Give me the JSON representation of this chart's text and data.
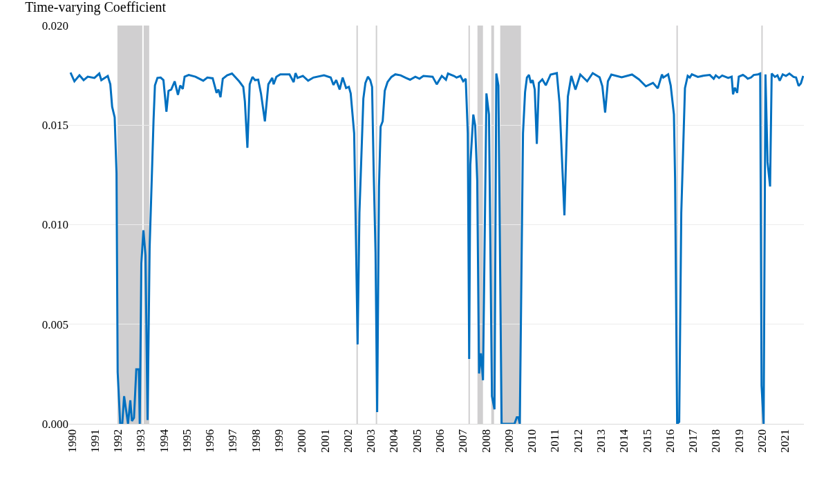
{
  "chart_data": {
    "type": "line",
    "title": "Time-varying Coefficient",
    "x": [
      1989.94,
      1990.11,
      1990.33,
      1990.51,
      1990.69,
      1990.98,
      1991.19,
      1991.28,
      1991.56,
      1991.67,
      1991.75,
      1991.86,
      1991.94,
      1991.99,
      1992.1,
      1992.19,
      1992.27,
      1992.44,
      1992.54,
      1992.61,
      1992.7,
      1992.8,
      1992.91,
      1992.95,
      1993.02,
      1993.11,
      1993.2,
      1993.29,
      1993.38,
      1993.48,
      1993.55,
      1993.61,
      1993.72,
      1993.86,
      1993.98,
      1994.11,
      1994.2,
      1994.32,
      1994.47,
      1994.61,
      1994.71,
      1994.82,
      1994.9,
      1995.08,
      1995.37,
      1995.71,
      1995.89,
      1996.12,
      1996.29,
      1996.37,
      1996.46,
      1996.56,
      1996.75,
      1996.96,
      1997.27,
      1997.45,
      1997.52,
      1997.63,
      1997.73,
      1997.85,
      1997.96,
      1998.1,
      1998.22,
      1998.39,
      1998.54,
      1998.71,
      1998.77,
      1998.89,
      1999.06,
      1999.46,
      1999.64,
      1999.72,
      1999.81,
      2000.04,
      2000.27,
      2000.5,
      2000.96,
      2001.25,
      2001.37,
      2001.49,
      2001.64,
      2001.77,
      2001.92,
      2002.04,
      2002.12,
      2002.27,
      2002.33,
      2002.42,
      2002.5,
      2002.67,
      2002.76,
      2002.87,
      2002.97,
      2003.05,
      2003.12,
      2003.2,
      2003.27,
      2003.35,
      2003.42,
      2003.51,
      2003.6,
      2003.72,
      2003.89,
      2004.06,
      2004.29,
      2004.52,
      2004.7,
      2004.93,
      2005.11,
      2005.28,
      2005.68,
      2005.86,
      2006.08,
      2006.26,
      2006.35,
      2006.61,
      2006.72,
      2006.89,
      2007.01,
      2007.12,
      2007.21,
      2007.27,
      2007.32,
      2007.45,
      2007.53,
      2007.62,
      2007.7,
      2007.78,
      2007.87,
      2008.02,
      2008.13,
      2008.26,
      2008.37,
      2008.45,
      2008.54,
      2008.68,
      2009.24,
      2009.34,
      2009.41,
      2009.47,
      2009.61,
      2009.7,
      2009.78,
      2009.87,
      2009.95,
      2010.03,
      2010.12,
      2010.21,
      2010.3,
      2010.45,
      2010.6,
      2010.81,
      2011.08,
      2011.2,
      2011.41,
      2011.56,
      2011.71,
      2011.89,
      2012.1,
      2012.4,
      2012.64,
      2012.94,
      2013.06,
      2013.18,
      2013.3,
      2013.45,
      2013.9,
      2014.35,
      2014.65,
      2014.95,
      2015.26,
      2015.47,
      2015.65,
      2015.71,
      2015.92,
      2016.03,
      2016.17,
      2016.22,
      2016.31,
      2016.4,
      2016.49,
      2016.65,
      2016.77,
      2016.86,
      2016.95,
      2017.21,
      2017.49,
      2017.73,
      2017.9,
      2017.99,
      2018.13,
      2018.27,
      2018.53,
      2018.68,
      2018.74,
      2018.82,
      2018.92,
      2018.99,
      2019.17,
      2019.29,
      2019.38,
      2019.52,
      2019.64,
      2019.83,
      2019.92,
      2019.98,
      2020.07,
      2020.15,
      2020.24,
      2020.35,
      2020.42,
      2020.56,
      2020.67,
      2020.77,
      2020.9,
      2021.04,
      2021.19,
      2021.37,
      2021.48,
      2021.59,
      2021.69,
      2021.79
    ],
    "series": [
      {
        "color": "#0070c0",
        "values": [
          0.01764,
          0.0172,
          0.0175,
          0.01726,
          0.01743,
          0.01737,
          0.01759,
          0.01726,
          0.01747,
          0.01705,
          0.01592,
          0.01539,
          0.01259,
          0.0026,
          0.0,
          0.0,
          0.00139,
          0.0,
          0.00118,
          0.00014,
          0.0003,
          0.00274,
          0.00274,
          0.0,
          0.00806,
          0.00972,
          0.00846,
          0.00019,
          0.00886,
          0.01259,
          0.01526,
          0.01699,
          0.01737,
          0.01739,
          0.01726,
          0.01567,
          0.01672,
          0.01679,
          0.0172,
          0.01652,
          0.01699,
          0.01682,
          0.01743,
          0.01752,
          0.01743,
          0.01723,
          0.01739,
          0.01735,
          0.01662,
          0.01679,
          0.0164,
          0.01733,
          0.0175,
          0.01759,
          0.0172,
          0.01692,
          0.01619,
          0.01386,
          0.01705,
          0.01742,
          0.01726,
          0.01728,
          0.01659,
          0.01519,
          0.01705,
          0.01737,
          0.01705,
          0.01743,
          0.01755,
          0.01755,
          0.01716,
          0.01761,
          0.01737,
          0.01747,
          0.01723,
          0.01739,
          0.0175,
          0.01739,
          0.01702,
          0.01726,
          0.01679,
          0.01739,
          0.01686,
          0.01692,
          0.01659,
          0.01459,
          0.01059,
          0.00399,
          0.01059,
          0.01633,
          0.01712,
          0.01743,
          0.01726,
          0.01692,
          0.01259,
          0.0086,
          0.00059,
          0.01192,
          0.01492,
          0.01519,
          0.01672,
          0.01716,
          0.01742,
          0.01755,
          0.0175,
          0.01737,
          0.01728,
          0.01743,
          0.01733,
          0.01747,
          0.01743,
          0.01705,
          0.01747,
          0.01728,
          0.01759,
          0.01747,
          0.01739,
          0.01747,
          0.0172,
          0.01733,
          0.01459,
          0.00326,
          0.013,
          0.01553,
          0.01499,
          0.0122,
          0.00253,
          0.00354,
          0.00219,
          0.01659,
          0.01553,
          0.00139,
          0.00073,
          0.01759,
          0.01699,
          0.0,
          0.0,
          0.00033,
          0.00033,
          0.0,
          0.01459,
          0.01666,
          0.01739,
          0.01752,
          0.01712,
          0.01726,
          0.01679,
          0.01406,
          0.01712,
          0.0173,
          0.017,
          0.01754,
          0.01761,
          0.01608,
          0.01047,
          0.01643,
          0.01747,
          0.01678,
          0.01754,
          0.0172,
          0.01761,
          0.0174,
          0.01695,
          0.01563,
          0.0172,
          0.01754,
          0.0174,
          0.01754,
          0.0173,
          0.01695,
          0.01712,
          0.01685,
          0.01754,
          0.01739,
          0.01755,
          0.01699,
          0.01553,
          0.01232,
          0.0,
          0.0001,
          0.01059,
          0.01686,
          0.01747,
          0.01739,
          0.01755,
          0.01742,
          0.01749,
          0.01752,
          0.01733,
          0.0175,
          0.01737,
          0.01749,
          0.01737,
          0.01743,
          0.01655,
          0.01688,
          0.01662,
          0.01743,
          0.01752,
          0.01743,
          0.01733,
          0.01739,
          0.01752,
          0.01755,
          0.01759,
          0.00192,
          0.0,
          0.01755,
          0.01314,
          0.01192,
          0.01759,
          0.01742,
          0.0175,
          0.01723,
          0.01755,
          0.01747,
          0.01759,
          0.01742,
          0.01739,
          0.01697,
          0.0171,
          0.01747
        ]
      }
    ],
    "xlim": [
      1989.88,
      2021.82
    ],
    "xticks": [
      1990,
      1991,
      1992,
      1993,
      1994,
      1995,
      1996,
      1997,
      1998,
      1999,
      2000,
      2001,
      2002,
      2003,
      2004,
      2005,
      2006,
      2007,
      2008,
      2009,
      2010,
      2011,
      2012,
      2013,
      2014,
      2015,
      2016,
      2017,
      2018,
      2019,
      2020,
      2021
    ],
    "ylim": [
      0,
      0.02
    ],
    "yticks": [
      {
        "value": 0,
        "label": "0.000"
      },
      {
        "value": 0.005,
        "label": "0.005"
      },
      {
        "value": 0.01,
        "label": "0.010"
      },
      {
        "value": 0.015,
        "label": "0.015"
      },
      {
        "value": 0.02,
        "label": "0.020"
      }
    ],
    "bands": [
      {
        "axis": "x",
        "from": 1991.98,
        "to": 1993.06,
        "color": "#d0cfd0"
      },
      {
        "axis": "x",
        "from": 1993.12,
        "to": 1993.36,
        "color": "#d0cfd0"
      },
      {
        "axis": "x",
        "from": 2002.37,
        "to": 2002.43,
        "color": "#d0cfd0"
      },
      {
        "axis": "x",
        "from": 2003.21,
        "to": 2003.27,
        "color": "#d0cfd0"
      },
      {
        "axis": "x",
        "from": 2007.24,
        "to": 2007.3,
        "color": "#d0cfd0"
      },
      {
        "axis": "x",
        "from": 2007.63,
        "to": 2007.87,
        "color": "#d0cfd0"
      },
      {
        "axis": "x",
        "from": 2008.23,
        "to": 2008.35,
        "color": "#d0cfd0"
      },
      {
        "axis": "x",
        "from": 2008.62,
        "to": 2009.52,
        "color": "#d0cfd0"
      },
      {
        "axis": "x",
        "from": 2016.28,
        "to": 2016.34,
        "color": "#d0cfd0"
      },
      {
        "axis": "x",
        "from": 2019.97,
        "to": 2020.03,
        "color": "#d0cfd0"
      }
    ],
    "grid": "y",
    "marker": "none",
    "line_style": "solid"
  }
}
